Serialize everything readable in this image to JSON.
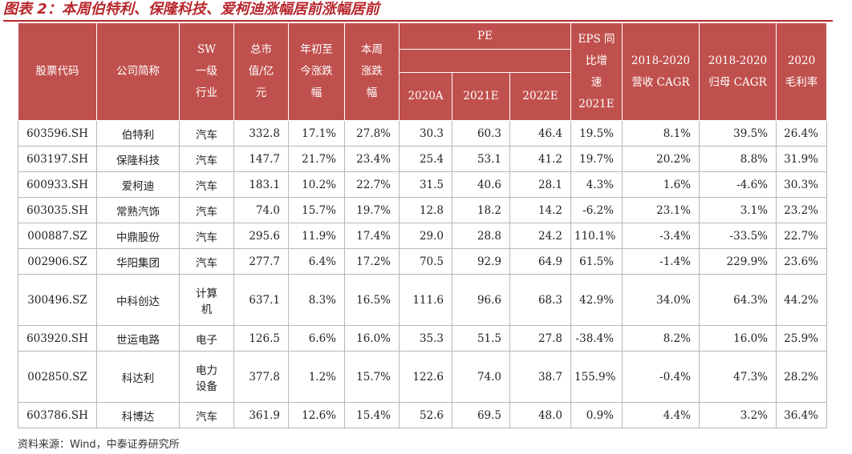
{
  "title": "图表 2：本周伯特利、保隆科技、爱柯迪涨幅居前涨幅居前",
  "headers": {
    "code": "股票代码",
    "name": "公司简称",
    "industry": "SW\n一级\n行业",
    "mcap": "总市\n值/亿\n元",
    "ytd": "年初至\n今涨跌\n幅",
    "week": "本周\n涨跌\n幅",
    "pe_group": "PE",
    "pe_2020": "2020A",
    "pe_2021": "2021E",
    "pe_2022": "2022E",
    "eps": "EPS 同\n比增\n速\n2021E",
    "rev_cagr": "2018-2020\n营收 CAGR",
    "np_cagr": "2018-2020\n归母 CAGR",
    "gm": "2020\n毛利率"
  },
  "rows": [
    {
      "code": "603596.SH",
      "name": "伯特利",
      "industry": "汽车",
      "mcap": "332.8",
      "ytd": "17.1%",
      "week": "27.8%",
      "pe2020": "30.3",
      "pe2021": "60.3",
      "pe2022": "46.4",
      "eps": "19.5%",
      "rev": "8.1%",
      "np": "39.5%",
      "gm": "26.4%"
    },
    {
      "code": "603197.SH",
      "name": "保隆科技",
      "industry": "汽车",
      "mcap": "147.7",
      "ytd": "21.7%",
      "week": "23.4%",
      "pe2020": "25.4",
      "pe2021": "53.1",
      "pe2022": "41.2",
      "eps": "19.7%",
      "rev": "20.2%",
      "np": "8.8%",
      "gm": "31.9%"
    },
    {
      "code": "600933.SH",
      "name": "爱柯迪",
      "industry": "汽车",
      "mcap": "183.1",
      "ytd": "10.2%",
      "week": "22.7%",
      "pe2020": "31.5",
      "pe2021": "40.6",
      "pe2022": "28.1",
      "eps": "4.3%",
      "rev": "1.6%",
      "np": "-4.6%",
      "gm": "30.3%"
    },
    {
      "code": "603035.SH",
      "name": "常熟汽饰",
      "industry": "汽车",
      "mcap": "74.0",
      "ytd": "15.7%",
      "week": "19.7%",
      "pe2020": "12.8",
      "pe2021": "18.2",
      "pe2022": "14.2",
      "eps": "-6.2%",
      "rev": "23.1%",
      "np": "3.1%",
      "gm": "23.2%"
    },
    {
      "code": "000887.SZ",
      "name": "中鼎股份",
      "industry": "汽车",
      "mcap": "295.6",
      "ytd": "11.9%",
      "week": "17.4%",
      "pe2020": "29.0",
      "pe2021": "28.8",
      "pe2022": "24.2",
      "eps": "110.1%",
      "rev": "-3.4%",
      "np": "-33.5%",
      "gm": "22.7%"
    },
    {
      "code": "002906.SZ",
      "name": "华阳集团",
      "industry": "汽车",
      "mcap": "277.7",
      "ytd": "6.4%",
      "week": "17.2%",
      "pe2020": "70.5",
      "pe2021": "92.9",
      "pe2022": "64.9",
      "eps": "61.5%",
      "rev": "-1.4%",
      "np": "229.9%",
      "gm": "23.6%"
    },
    {
      "code": "300496.SZ",
      "name": "中科创达",
      "industry": "计算\n机",
      "mcap": "637.1",
      "ytd": "8.3%",
      "week": "16.5%",
      "pe2020": "111.6",
      "pe2021": "96.6",
      "pe2022": "68.3",
      "eps": "42.9%",
      "rev": "34.0%",
      "np": "64.3%",
      "gm": "44.2%"
    },
    {
      "code": "603920.SH",
      "name": "世运电路",
      "industry": "电子",
      "mcap": "126.5",
      "ytd": "6.6%",
      "week": "16.0%",
      "pe2020": "35.3",
      "pe2021": "51.5",
      "pe2022": "27.8",
      "eps": "-38.4%",
      "rev": "8.2%",
      "np": "16.0%",
      "gm": "25.9%"
    },
    {
      "code": "002850.SZ",
      "name": "科达利",
      "industry": "电力\n设备",
      "mcap": "377.8",
      "ytd": "1.2%",
      "week": "15.7%",
      "pe2020": "122.6",
      "pe2021": "74.0",
      "pe2022": "38.7",
      "eps": "155.9%",
      "rev": "-0.4%",
      "np": "47.3%",
      "gm": "28.2%"
    },
    {
      "code": "603786.SH",
      "name": "科博达",
      "industry": "汽车",
      "mcap": "361.9",
      "ytd": "12.6%",
      "week": "15.4%",
      "pe2020": "52.6",
      "pe2021": "69.5",
      "pe2022": "48.0",
      "eps": "0.9%",
      "rev": "4.4%",
      "np": "3.2%",
      "gm": "36.4%"
    }
  ],
  "source": "资料来源：Wind，中泰证券研究所",
  "colors": {
    "header_bg": "#c0504d",
    "title": "#b8262c"
  }
}
